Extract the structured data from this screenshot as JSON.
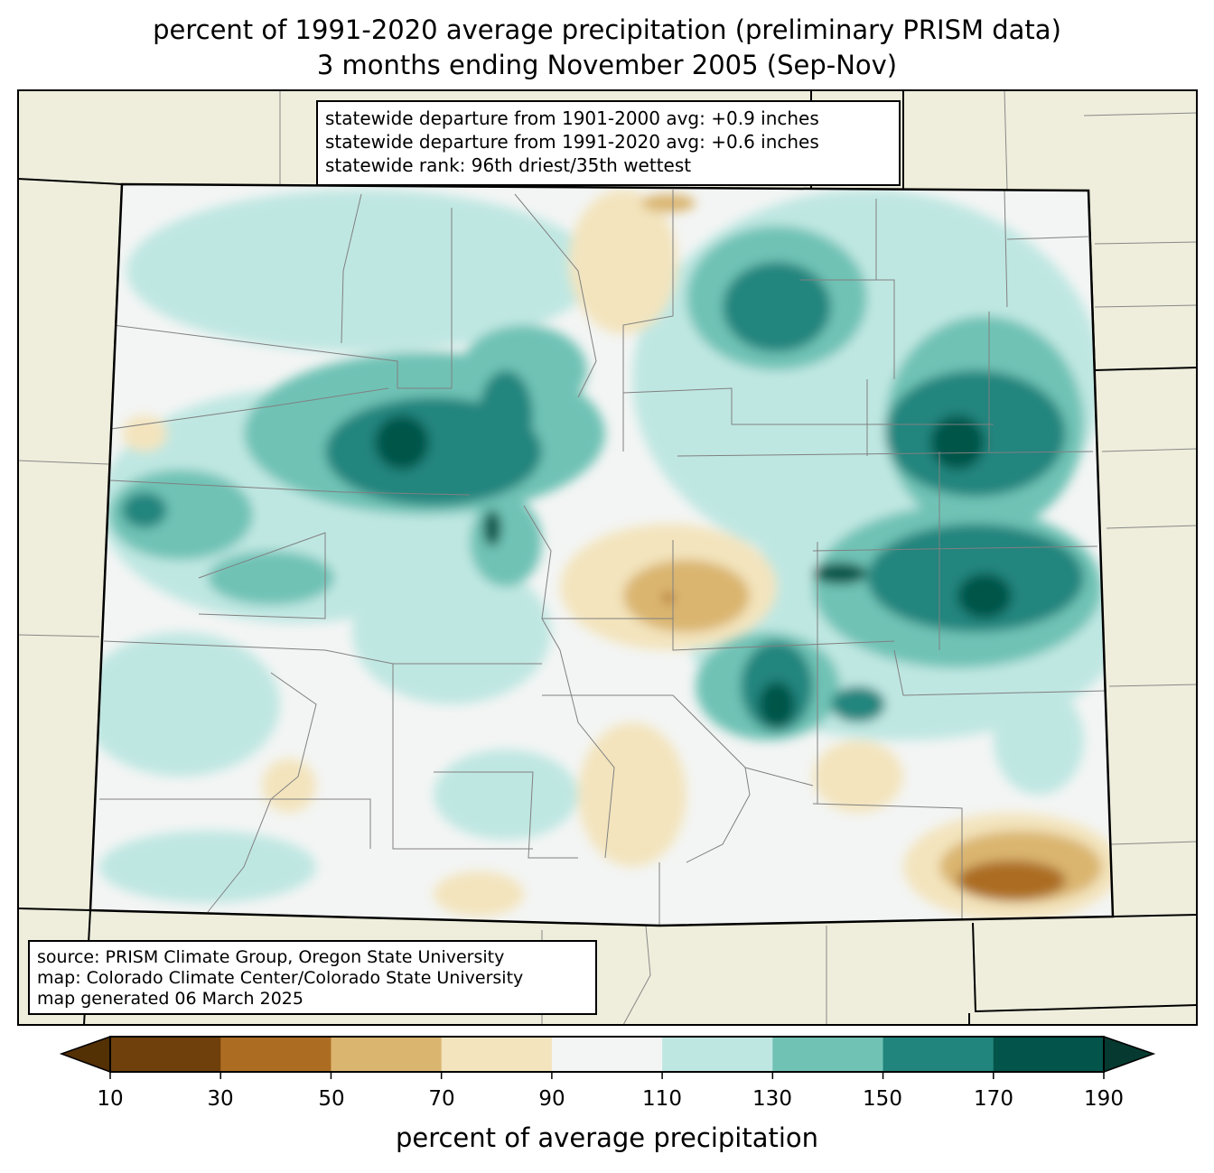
{
  "title": {
    "line1": "percent of 1991-2020 average precipitation (preliminary PRISM data)",
    "line2": "3 months ending November 2005 (Sep-Nov)"
  },
  "stats_box": {
    "line1": "statewide departure from 1901-2000 avg: +0.9 inches",
    "line2": "statewide departure from 1991-2020 avg: +0.6 inches",
    "line3": "statewide rank: 96th driest/35th wettest"
  },
  "credits_box": {
    "line1": "source: PRISM Climate Group, Oregon State University",
    "line2": "map: Colorado Climate Center/Colorado State University",
    "line3": "map generated 06 March 2025"
  },
  "colorbar": {
    "label": "percent of average precipitation",
    "ticks": [
      "10",
      "30",
      "50",
      "70",
      "90",
      "110",
      "130",
      "150",
      "170",
      "190"
    ],
    "under_color": "#543005",
    "over_color": "#063a30",
    "colors": [
      "#6f400b",
      "#ac6d22",
      "#dab570",
      "#f3e4bd",
      "#f3f5f4",
      "#bfe7e2",
      "#70c2b5",
      "#21857e",
      "#03544a"
    ]
  },
  "map_colors": {
    "land": "#efeedc",
    "county_lines": "#808080",
    "state_lines": "#000000"
  }
}
